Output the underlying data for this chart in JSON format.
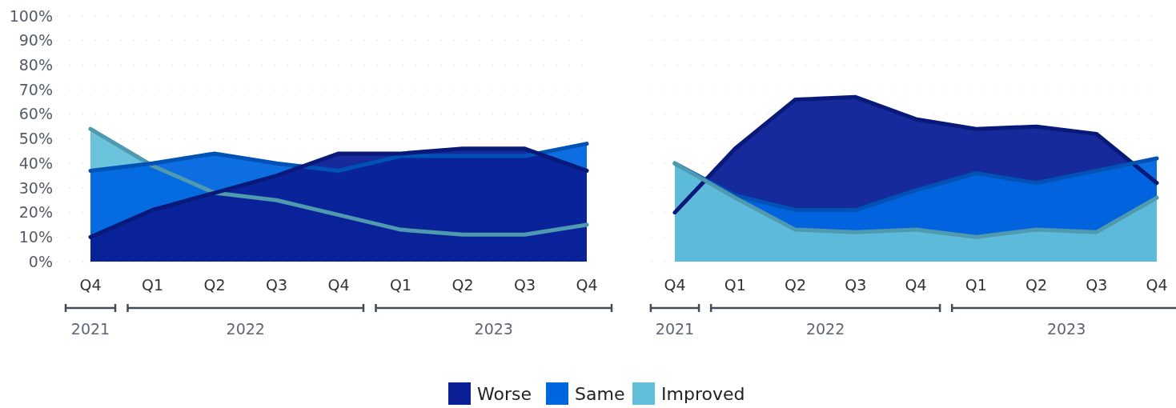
{
  "chart_data": [
    {
      "type": "area",
      "categories": [
        "Q4",
        "Q1",
        "Q2",
        "Q3",
        "Q4",
        "Q1",
        "Q2",
        "Q3",
        "Q4"
      ],
      "ylim": [
        0,
        100
      ],
      "yticks": [
        {
          "value": 0,
          "label": "0%"
        },
        {
          "value": 10,
          "label": "10%"
        },
        {
          "value": 20,
          "label": "20%"
        },
        {
          "value": 30,
          "label": "30%"
        },
        {
          "value": 40,
          "label": "40%"
        },
        {
          "value": 50,
          "label": "50%"
        },
        {
          "value": 60,
          "label": "60%"
        },
        {
          "value": 70,
          "label": "70%"
        },
        {
          "value": 80,
          "label": "80%"
        },
        {
          "value": 90,
          "label": "90%"
        },
        {
          "value": 100,
          "label": "100%"
        }
      ],
      "grid": "y",
      "annotations": [
        "2021",
        "2022",
        "2023"
      ],
      "series": [
        {
          "color": "#62bfd9",
          "values": [
            54,
            39,
            28,
            25,
            19,
            13,
            11,
            11,
            15
          ]
        },
        {
          "color": "#0066e0",
          "values": [
            37,
            40,
            44,
            40,
            37,
            43,
            43,
            43,
            48
          ]
        },
        {
          "color": "#0a1f96",
          "values": [
            10,
            21,
            28,
            35,
            44,
            44,
            46,
            46,
            37
          ]
        }
      ]
    },
    {
      "type": "area",
      "categories": [
        "Q4",
        "Q1",
        "Q2",
        "Q3",
        "Q4",
        "Q1",
        "Q2",
        "Q3",
        "Q4"
      ],
      "ylim": [
        0,
        100
      ],
      "yticks": [
        0,
        10,
        20,
        30,
        40,
        50,
        60,
        70,
        80,
        90,
        100
      ],
      "grid": "y",
      "tick_labels": "x",
      "legend": "bottom",
      "annotations": [
        "2021",
        "2022",
        "2023"
      ],
      "series": [
        {
          "name": "Worse",
          "color": "#0a1f96",
          "values": [
            20,
            46,
            66,
            67,
            58,
            54,
            55,
            52,
            32
          ]
        },
        {
          "name": "Same",
          "color": "#0066e0",
          "values": [
            40,
            27,
            21,
            21,
            29,
            36,
            32,
            37,
            42
          ]
        },
        {
          "name": "Improved",
          "color": "#62bfd9",
          "values": [
            40,
            26,
            13,
            12,
            13,
            10,
            13,
            12,
            26
          ]
        }
      ]
    }
  ]
}
